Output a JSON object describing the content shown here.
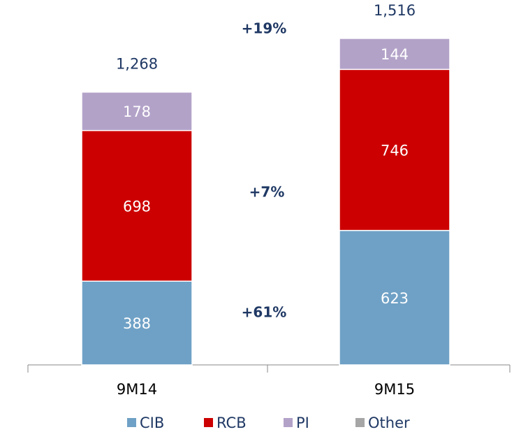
{
  "chart_data": {
    "type": "stacked_bar",
    "categories": [
      "9M14",
      "9M15"
    ],
    "series": [
      {
        "name": "CIB",
        "color": "#6fa1c6",
        "values": [
          388,
          623
        ]
      },
      {
        "name": "RCB",
        "color": "#cc0000",
        "values": [
          698,
          746
        ]
      },
      {
        "name": "PI",
        "color": "#b3a2c8",
        "values": [
          178,
          144
        ]
      },
      {
        "name": "Other",
        "color": "#a6a6a6",
        "values": [
          4,
          3
        ]
      }
    ],
    "labeled_series": [
      "CIB",
      "RCB",
      "PI"
    ],
    "totals": {
      "values": [
        1268,
        1516
      ],
      "value_labels": [
        "1,268",
        "1,516"
      ]
    },
    "annotations": [
      "+19%",
      "+7%",
      "+61%"
    ],
    "ylim": [
      0,
      1600
    ],
    "legend": "bottom"
  }
}
